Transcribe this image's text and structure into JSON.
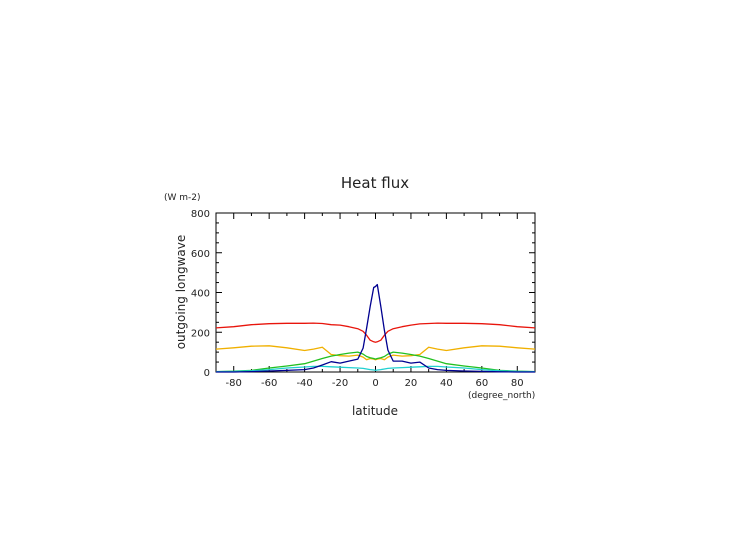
{
  "chart_data": {
    "type": "line",
    "title": "Heat flux",
    "xlabel": "latitude",
    "x_unit": "(degree_north)",
    "ylabel": "outgoing longwave",
    "y_unit": "(W m-2)",
    "xlim": [
      -90,
      90
    ],
    "ylim": [
      0,
      800
    ],
    "x_ticks": [
      -80,
      -60,
      -40,
      -20,
      0,
      20,
      40,
      60,
      80
    ],
    "y_ticks": [
      0,
      200,
      400,
      600,
      800
    ],
    "grid": false,
    "x": [
      -90,
      -80,
      -70,
      -60,
      -50,
      -40,
      -35,
      -30,
      -25,
      -20,
      -15,
      -10,
      -7,
      -5,
      -3,
      -1,
      0,
      1,
      3,
      5,
      7,
      10,
      15,
      20,
      25,
      30,
      35,
      40,
      50,
      60,
      70,
      80,
      90
    ],
    "series": [
      {
        "color": "#e8150c",
        "values": [
          222,
          228,
          238,
          243,
          245,
          245,
          246,
          244,
          238,
          236,
          228,
          218,
          205,
          185,
          160,
          152,
          150,
          152,
          160,
          185,
          205,
          218,
          228,
          236,
          242,
          244,
          246,
          245,
          245,
          243,
          238,
          228,
          222
        ]
      },
      {
        "color": "#f0b000",
        "values": [
          115,
          122,
          130,
          132,
          122,
          108,
          115,
          125,
          88,
          82,
          80,
          85,
          75,
          62,
          68,
          65,
          62,
          65,
          68,
          62,
          75,
          85,
          80,
          82,
          88,
          125,
          115,
          108,
          122,
          132,
          130,
          122,
          115
        ]
      },
      {
        "color": "#22c020",
        "values": [
          2,
          4,
          8,
          20,
          30,
          42,
          55,
          68,
          80,
          88,
          95,
          100,
          90,
          78,
          72,
          68,
          65,
          68,
          72,
          78,
          90,
          100,
          95,
          88,
          80,
          68,
          55,
          42,
          30,
          20,
          8,
          4,
          2
        ]
      },
      {
        "color": "#20d0d0",
        "values": [
          2,
          3,
          6,
          12,
          20,
          25,
          28,
          28,
          26,
          24,
          22,
          20,
          18,
          15,
          12,
          10,
          8,
          10,
          12,
          15,
          18,
          20,
          22,
          24,
          26,
          28,
          28,
          25,
          20,
          12,
          6,
          3,
          2
        ]
      },
      {
        "color": "#000090",
        "values": [
          0,
          0,
          2,
          5,
          8,
          12,
          20,
          35,
          52,
          45,
          55,
          65,
          120,
          220,
          330,
          425,
          430,
          440,
          330,
          210,
          110,
          55,
          55,
          45,
          50,
          20,
          12,
          8,
          5,
          3,
          1,
          0,
          0
        ]
      }
    ]
  }
}
